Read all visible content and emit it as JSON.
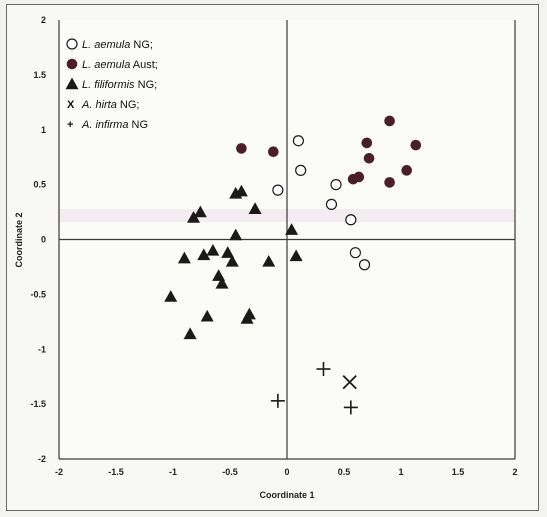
{
  "chart_data": {
    "type": "scatter",
    "title": "",
    "xlabel": "Coordinate 1",
    "ylabel": "Coordinate 2",
    "xlim": [
      -2,
      2
    ],
    "ylim": [
      -2,
      2
    ],
    "xticks": [
      "-2",
      "-1.5",
      "-1",
      "-0.5",
      "0",
      "0.5",
      "1",
      "1.5",
      "2"
    ],
    "yticks": [
      "2",
      "1.5",
      "1",
      "0.5",
      "0",
      "-0.5",
      "-1",
      "-1.5",
      "-2"
    ],
    "grid": false,
    "legend_position": "top-left",
    "series": [
      {
        "italic": "L. aemula",
        "suffix": " NG;",
        "marker": "open-circle",
        "color": "#1a1a1a",
        "points": [
          [
            0.1,
            0.9
          ],
          [
            0.12,
            0.63
          ],
          [
            -0.08,
            0.45
          ],
          [
            0.43,
            0.5
          ],
          [
            0.39,
            0.32
          ],
          [
            0.56,
            0.18
          ],
          [
            0.6,
            -0.12
          ],
          [
            0.68,
            -0.23
          ]
        ]
      },
      {
        "italic": "L. aemula",
        "suffix": " Aust;",
        "marker": "filled-circle",
        "color": "#4a1f2a",
        "points": [
          [
            -0.4,
            0.83
          ],
          [
            -0.12,
            0.8
          ],
          [
            0.7,
            0.88
          ],
          [
            0.9,
            1.08
          ],
          [
            0.72,
            0.74
          ],
          [
            1.13,
            0.86
          ],
          [
            0.58,
            0.55
          ],
          [
            0.63,
            0.57
          ],
          [
            1.05,
            0.63
          ],
          [
            0.9,
            0.52
          ]
        ]
      },
      {
        "italic": "L. filiformis",
        "suffix": " NG;",
        "marker": "filled-triangle",
        "color": "#1a1a1a",
        "points": [
          [
            -0.45,
            0.42
          ],
          [
            -0.4,
            0.44
          ],
          [
            -0.82,
            0.2
          ],
          [
            -0.76,
            0.25
          ],
          [
            -0.28,
            0.28
          ],
          [
            -0.45,
            0.04
          ],
          [
            0.04,
            0.09
          ],
          [
            -0.9,
            -0.17
          ],
          [
            -0.73,
            -0.14
          ],
          [
            -0.65,
            -0.1
          ],
          [
            -0.52,
            -0.12
          ],
          [
            -0.48,
            -0.2
          ],
          [
            -0.16,
            -0.2
          ],
          [
            0.08,
            -0.15
          ],
          [
            -0.6,
            -0.33
          ],
          [
            -0.57,
            -0.4
          ],
          [
            -1.02,
            -0.52
          ],
          [
            -0.7,
            -0.7
          ],
          [
            -0.35,
            -0.72
          ],
          [
            -0.33,
            -0.68
          ],
          [
            -0.85,
            -0.86
          ]
        ]
      },
      {
        "italic": "A. hirta",
        "suffix": " NG;",
        "marker": "x",
        "color": "#1a1a1a",
        "prefix_glyph": "X",
        "points": [
          [
            0.55,
            -1.3
          ]
        ]
      },
      {
        "italic": "A. infirma",
        "suffix": " NG",
        "marker": "plus",
        "color": "#1a1a1a",
        "prefix_glyph": "+",
        "points": [
          [
            0.32,
            -1.18
          ],
          [
            -0.08,
            -1.47
          ],
          [
            0.56,
            -1.53
          ]
        ]
      }
    ]
  }
}
